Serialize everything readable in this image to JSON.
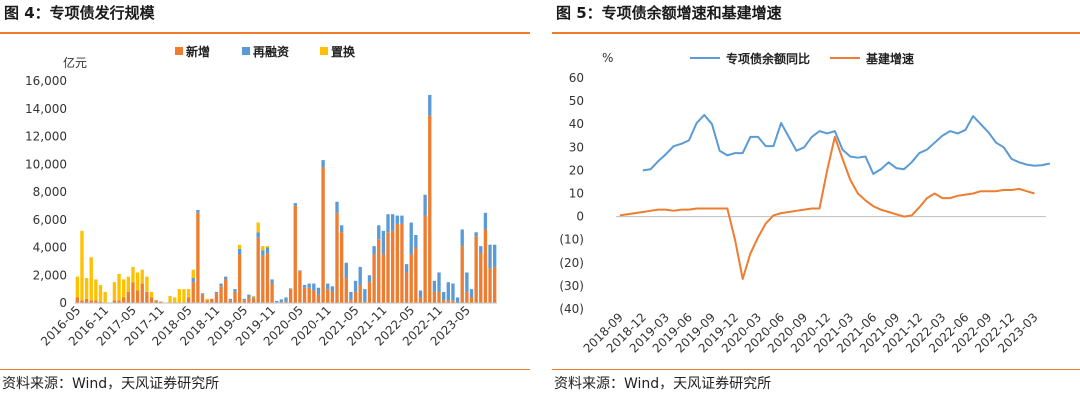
{
  "left": {
    "title": "图 4：专项债发行规模",
    "source": "资料来源：Wind，天风证券研究所"
  },
  "right": {
    "title": "图 5：专项债余额增速和基建增速",
    "source": "资料来源：Wind，天风证券研究所"
  },
  "chart_data": [
    {
      "type": "bar",
      "stacked": true,
      "title": "专项债发行规模",
      "ylabel": "亿元",
      "ylim": [
        0,
        16000
      ],
      "yticks": [
        "0",
        "2,000",
        "4,000",
        "6,000",
        "8,000",
        "10,000",
        "12,000",
        "14,000",
        "16,000"
      ],
      "tick_labels": [
        "2016-05",
        "2016-11",
        "2017-05",
        "2017-11",
        "2018-05",
        "2018-11",
        "2019-05",
        "2019-11",
        "2020-05",
        "2020-11",
        "2021-05",
        "2021-11",
        "2022-05",
        "2022-11",
        "2023-05"
      ],
      "legend_position": "top",
      "grid": false,
      "colors": {
        "新增": "#ed7d31",
        "再融资": "#5b9bd5",
        "置换": "#ffc000"
      },
      "series": [
        {
          "name": "新增",
          "values": [
            400,
            200,
            300,
            200,
            200,
            100,
            0,
            0,
            200,
            200,
            400,
            800,
            1500,
            900,
            1400,
            800,
            400,
            200,
            100,
            0,
            0,
            0,
            0,
            0,
            400,
            1500,
            6500,
            600,
            200,
            300,
            700,
            1200,
            1700,
            200,
            800,
            3500,
            200,
            400,
            300,
            4700,
            3400,
            3600,
            1400,
            50,
            60,
            100,
            1000,
            7000,
            2300,
            1100,
            1100,
            900,
            600,
            9800,
            1000,
            800,
            6500,
            5100,
            1800,
            200,
            800,
            1300,
            100,
            1500,
            3500,
            4600,
            3500,
            5100,
            5200,
            5700,
            5700,
            2200,
            3500,
            4000,
            400,
            6300,
            13500,
            800,
            800,
            200,
            200,
            200,
            0,
            4100,
            800,
            400,
            4800,
            3600,
            5300,
            2500,
            2600
          ]
        },
        {
          "name": "再融资",
          "values": [
            0,
            0,
            0,
            0,
            0,
            0,
            0,
            0,
            0,
            0,
            0,
            0,
            0,
            0,
            0,
            0,
            0,
            0,
            0,
            0,
            0,
            0,
            0,
            0,
            0,
            300,
            200,
            100,
            0,
            0,
            100,
            200,
            200,
            100,
            200,
            400,
            100,
            200,
            100,
            400,
            400,
            400,
            300,
            100,
            200,
            300,
            50,
            200,
            50,
            200,
            300,
            500,
            500,
            500,
            400,
            400,
            800,
            500,
            1100,
            600,
            800,
            1300,
            900,
            500,
            600,
            1000,
            1700,
            1300,
            1200,
            600,
            600,
            600,
            2300,
            900,
            500,
            1500,
            1500,
            800,
            1400,
            600,
            1300,
            1200,
            400,
            1200,
            1400,
            600,
            300,
            500,
            1200,
            1700,
            1600
          ]
        },
        {
          "name": "置换",
          "values": [
            1500,
            5000,
            1500,
            3100,
            1500,
            1200,
            800,
            0,
            1300,
            1900,
            1300,
            1100,
            1100,
            1300,
            1000,
            1100,
            400,
            0,
            0,
            0,
            500,
            400,
            1000,
            1000,
            600,
            600,
            0,
            0,
            100,
            0,
            0,
            0,
            0,
            0,
            0,
            300,
            0,
            0,
            100,
            700,
            300,
            100,
            0,
            0,
            0,
            0,
            0,
            0,
            0,
            0,
            0,
            0,
            0,
            0,
            0,
            0,
            0,
            0,
            0,
            0,
            0,
            0,
            0,
            0,
            0,
            0,
            0,
            0,
            0,
            0,
            0,
            0,
            0,
            0,
            0,
            0,
            0,
            0,
            0,
            0,
            0,
            0,
            0,
            0,
            0,
            0,
            0,
            0,
            0,
            0,
            0
          ]
        }
      ]
    },
    {
      "type": "line",
      "title": "专项债余额增速和基建增速",
      "ylabel": "%",
      "ylim": [
        -40,
        60
      ],
      "yticks": [
        "60",
        "50",
        "40",
        "30",
        "20",
        "10",
        "0",
        "(10)",
        "(20)",
        "(30)",
        "(40)"
      ],
      "tick_labels": [
        "2018-09",
        "2018-12",
        "2019-03",
        "2019-06",
        "2019-09",
        "2019-12",
        "2020-03",
        "2020-06",
        "2020-09",
        "2020-12",
        "2021-03",
        "2021-06",
        "2021-09",
        "2021-12",
        "2022-03",
        "2022-06",
        "2022-09",
        "2022-12",
        "2023-03"
      ],
      "legend_position": "top",
      "grid": false,
      "colors": {
        "专项债余额同比": "#5b9bd5",
        "基建增速": "#ed7d31"
      },
      "series": [
        {
          "name": "专项债余额同比",
          "start_index": 3,
          "values": [
            20,
            20.5,
            24,
            27,
            30.5,
            31.5,
            33,
            40.5,
            44,
            40,
            28.5,
            26.5,
            27.5,
            27.5,
            34.5,
            34.5,
            30.5,
            30.5,
            40.5,
            34.5,
            28.5,
            30,
            34.5,
            37,
            36,
            37,
            29,
            26,
            25.5,
            26,
            18.5,
            20.5,
            23.5,
            21,
            20.5,
            23.5,
            27.5,
            29,
            32,
            35,
            37,
            36,
            37.5,
            43.5,
            40,
            36.5,
            32,
            30,
            25,
            23.5,
            22.5,
            22,
            22.3,
            23
          ]
        },
        {
          "name": "基建增速",
          "values": [
            0.5,
            1,
            1.5,
            2,
            2.5,
            3,
            3,
            2.5,
            3,
            3,
            3.5,
            3.5,
            3.5,
            3.5,
            3.5,
            -10,
            -27,
            -16,
            -9,
            -3,
            0.5,
            1.5,
            2,
            2.5,
            3,
            3.5,
            3.5,
            20,
            34.5,
            25,
            16,
            10,
            7,
            4.5,
            3,
            2,
            1,
            0,
            0.5,
            4,
            8,
            10,
            8,
            8,
            9,
            9.5,
            10,
            11,
            11,
            11,
            11.5,
            11.5,
            12,
            11,
            10
          ]
        }
      ]
    }
  ]
}
